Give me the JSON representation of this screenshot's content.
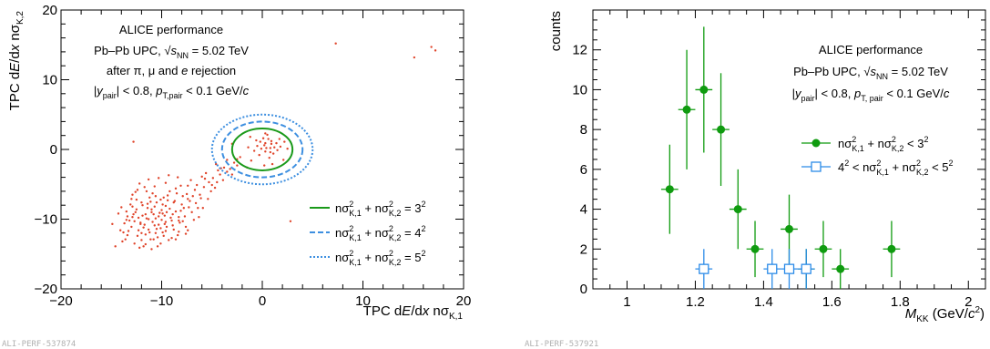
{
  "chart_data": [
    {
      "type": "scatter",
      "xlabel": "TPC dE/dx nσ_K,1",
      "ylabel": "TPC dE/dx nσ_K,2",
      "xlim": [
        -20,
        20
      ],
      "ylim": [
        -20,
        20
      ],
      "xticks": [
        "−20",
        "−10",
        "0",
        "10",
        "20"
      ],
      "yticks": [
        "−20",
        "−10",
        "0",
        "10",
        "20"
      ],
      "annotations": [
        "ALICE performance",
        "Pb–Pb UPC, √sNN = 5.02 TeV",
        "after π, μ and e rejection",
        "|y_pair| < 0.8, p_T,pair < 0.1 GeV/c"
      ],
      "legend": [
        "nσ²K,1 + nσ²K,2 = 3²",
        "nσ²K,1 + nσ²K,2 = 4²",
        "nσ²K,1 + nσ²K,2 = 5²"
      ],
      "legend_position": "bottom-right",
      "circles": [
        {
          "radius": 3,
          "style": "solid",
          "color": "#1a9a1a"
        },
        {
          "radius": 4,
          "style": "dashed",
          "color": "#3d8fe0"
        },
        {
          "radius": 5,
          "style": "dotted",
          "color": "#3d8fe0"
        }
      ],
      "point_color": "#e0442a",
      "points": [
        [
          7.3,
          15.2
        ],
        [
          15.1,
          13.2
        ],
        [
          16.8,
          14.7
        ],
        [
          17.2,
          14.2
        ],
        [
          -12.8,
          1.1
        ],
        [
          2.8,
          -10.3
        ],
        [
          -3.5,
          -1.5
        ],
        [
          -1.2,
          1.8
        ],
        [
          0.3,
          2.3
        ],
        [
          0.9,
          1.2
        ],
        [
          -0.5,
          0.5
        ],
        [
          0.2,
          0.6
        ],
        [
          0.8,
          0.2
        ],
        [
          1.4,
          0.9
        ],
        [
          0.3,
          -0.3
        ],
        [
          -0.2,
          1.1
        ],
        [
          1.1,
          -0.6
        ],
        [
          0.6,
          1.5
        ],
        [
          -0.8,
          -0.2
        ],
        [
          0.4,
          0.2
        ],
        [
          1.8,
          0.4
        ],
        [
          -0.3,
          -0.8
        ],
        [
          2.2,
          1.1
        ],
        [
          0.1,
          1.6
        ],
        [
          0.9,
          0.8
        ],
        [
          -1.4,
          0.3
        ],
        [
          1.5,
          -0.1
        ],
        [
          0.7,
          -1.2
        ],
        [
          -0.6,
          1.3
        ],
        [
          0.3,
          0.9
        ],
        [
          1.2,
          0.3
        ],
        [
          2.5,
          0.1
        ],
        [
          -1.1,
          -1.6
        ],
        [
          0.5,
          2.1
        ],
        [
          1.0,
          -2.1
        ],
        [
          -2.2,
          -1.1
        ],
        [
          1.7,
          1.5
        ],
        [
          -0.1,
          0.1
        ],
        [
          0.8,
          -0.4
        ],
        [
          -2.5,
          -2.3
        ],
        [
          -1.5,
          -2.6
        ],
        [
          0.2,
          -2.3
        ],
        [
          2.1,
          -1.5
        ],
        [
          -3.0,
          0.8
        ],
        [
          -13.5,
          -8.9
        ],
        [
          -12.9,
          -9.7
        ],
        [
          -12.1,
          -10.5
        ],
        [
          -11.4,
          -8.4
        ],
        [
          -11.8,
          -11.2
        ],
        [
          -10.8,
          -9.3
        ],
        [
          -10.3,
          -10.8
        ],
        [
          -9.6,
          -8.1
        ],
        [
          -9.9,
          -11.9
        ],
        [
          -13.0,
          -11.1
        ],
        [
          -12.4,
          -12.4
        ],
        [
          -11.1,
          -12.9
        ],
        [
          -10.6,
          -9.9
        ],
        [
          -9.1,
          -9.8
        ],
        [
          -8.6,
          -8.9
        ],
        [
          -8.2,
          -10.5
        ],
        [
          -8.8,
          -7.6
        ],
        [
          -9.4,
          -6.6
        ],
        [
          -10.1,
          -7.2
        ],
        [
          -11.2,
          -6.9
        ],
        [
          -12.0,
          -7.6
        ],
        [
          -13.2,
          -10.2
        ],
        [
          -14.1,
          -11.6
        ],
        [
          -13.6,
          -12.9
        ],
        [
          -12.7,
          -13.5
        ],
        [
          -11.6,
          -13.6
        ],
        [
          -10.4,
          -12.6
        ],
        [
          -9.5,
          -11.1
        ],
        [
          -8.3,
          -11.8
        ],
        [
          -7.7,
          -9.6
        ],
        [
          -7.3,
          -8.3
        ],
        [
          -7.9,
          -6.7
        ],
        [
          -8.6,
          -5.6
        ],
        [
          -9.6,
          -4.8
        ],
        [
          -10.7,
          -5.3
        ],
        [
          -11.7,
          -5.4
        ],
        [
          -12.6,
          -6.1
        ],
        [
          -13.1,
          -7.9
        ],
        [
          -14.3,
          -9.2
        ],
        [
          -14.6,
          -13.9
        ],
        [
          -13.9,
          -13.2
        ],
        [
          -12.2,
          -14.1
        ],
        [
          -11.0,
          -14.3
        ],
        [
          -10.1,
          -13.5
        ],
        [
          -9.0,
          -12.7
        ],
        [
          -7.6,
          -11.1
        ],
        [
          -6.8,
          -10.1
        ],
        [
          -6.4,
          -8.4
        ],
        [
          -6.9,
          -6.7
        ],
        [
          -7.4,
          -5.2
        ],
        [
          -8.4,
          -4.0
        ],
        [
          -9.3,
          -3.7
        ],
        [
          -10.3,
          -4.1
        ],
        [
          -11.3,
          -4.3
        ],
        [
          -12.2,
          -4.9
        ],
        [
          -12.9,
          -6.5
        ],
        [
          -11.5,
          -9.9
        ],
        [
          -10.9,
          -10.4
        ],
        [
          -10.2,
          -9.1
        ],
        [
          -9.7,
          -9.5
        ],
        [
          -11.9,
          -9.5
        ],
        [
          -12.5,
          -8.6
        ],
        [
          -10.7,
          -8.2
        ],
        [
          -9.2,
          -8.5
        ],
        [
          -8.7,
          -7.4
        ],
        [
          -11.4,
          -7.8
        ],
        [
          -12.3,
          -11.6
        ],
        [
          -10.5,
          -11.4
        ],
        [
          -9.6,
          -10.4
        ],
        [
          -8.9,
          -10.9
        ],
        [
          -13.3,
          -11.7
        ],
        [
          -11.7,
          -10.8
        ],
        [
          -10.0,
          -10.1
        ],
        [
          -8.1,
          -8.8
        ],
        [
          -7.2,
          -7.4
        ],
        [
          -6.2,
          -6.5
        ],
        [
          -5.8,
          -5.4
        ],
        [
          -5.3,
          -4.7
        ],
        [
          -4.9,
          -4.1
        ],
        [
          -6.5,
          -5.1
        ],
        [
          -7.1,
          -4.4
        ],
        [
          -5.6,
          -3.4
        ],
        [
          -4.4,
          -3.0
        ],
        [
          -3.8,
          -2.6
        ],
        [
          -4.6,
          -2.1
        ],
        [
          -6.0,
          -3.9
        ],
        [
          -12.8,
          -9.3
        ],
        [
          -11.3,
          -11.5
        ],
        [
          -10.6,
          -12.0
        ],
        [
          -9.9,
          -7.9
        ],
        [
          -13.7,
          -10.6
        ],
        [
          -12.0,
          -13.0
        ],
        [
          -8.4,
          -12.3
        ],
        [
          -7.9,
          -10.3
        ],
        [
          -10.9,
          -6.3
        ],
        [
          -11.9,
          -8.0
        ],
        [
          -13.4,
          -9.6
        ],
        [
          -9.3,
          -13.0
        ],
        [
          -10.4,
          -13.9
        ],
        [
          -11.6,
          -12.2
        ],
        [
          -12.7,
          -10.3
        ],
        [
          -8.9,
          -9.3
        ],
        [
          -9.8,
          -6.9
        ],
        [
          -7.0,
          -9.0
        ],
        [
          -6.6,
          -7.7
        ],
        [
          -5.9,
          -8.4
        ],
        [
          -5.1,
          -6.0
        ],
        [
          -4.7,
          -5.5
        ],
        [
          -3.9,
          -4.4
        ],
        [
          -4.2,
          -3.6
        ],
        [
          -3.2,
          -2.8
        ],
        [
          -2.8,
          -1.9
        ],
        [
          -5.4,
          -7.1
        ],
        [
          -6.3,
          -9.7
        ],
        [
          -7.6,
          -12.1
        ],
        [
          -11.0,
          -9.0
        ],
        [
          -10.3,
          -9.6
        ],
        [
          -9.6,
          -11.7
        ],
        [
          -12.3,
          -9.8
        ],
        [
          -13.8,
          -11.9
        ],
        [
          -14.9,
          -10.7
        ],
        [
          -12.5,
          -7.2
        ],
        [
          -11.1,
          -7.5
        ],
        [
          -9.4,
          -7.3
        ],
        [
          -8.0,
          -7.9
        ],
        [
          -7.4,
          -11.6
        ],
        [
          -8.6,
          -12.9
        ],
        [
          -10.8,
          -12.9
        ],
        [
          -12.0,
          -12.0
        ],
        [
          -9.0,
          -10.2
        ],
        [
          -8.3,
          -9.7
        ],
        [
          -10.0,
          -8.7
        ],
        [
          -11.3,
          -10.0
        ],
        [
          -12.9,
          -8.2
        ],
        [
          -13.4,
          -12.3
        ],
        [
          -11.8,
          -13.9
        ],
        [
          -9.8,
          -12.4
        ],
        [
          -8.8,
          -11.5
        ],
        [
          -7.8,
          -8.4
        ],
        [
          -6.7,
          -5.8
        ],
        [
          -5.7,
          -4.2
        ],
        [
          -4.1,
          -2.7
        ],
        [
          -3.0,
          -3.6
        ],
        [
          -2.5,
          -1.4
        ],
        [
          -10.5,
          -7.6
        ],
        [
          -9.2,
          -6.0
        ],
        [
          -8.1,
          -5.2
        ],
        [
          -7.5,
          -6.4
        ],
        [
          -11.5,
          -6.0
        ],
        [
          -12.4,
          -5.8
        ],
        [
          -13.0,
          -7.1
        ],
        [
          -14.0,
          -8.3
        ],
        [
          -11.2,
          -11.9
        ],
        [
          -12.1,
          -10.7
        ],
        [
          -10.7,
          -10.9
        ],
        [
          -9.5,
          -9.0
        ],
        [
          -10.1,
          -11.3
        ],
        [
          -11.6,
          -9.3
        ],
        [
          -9.9,
          -9.2
        ],
        [
          -10.6,
          -6.7
        ],
        [
          -8.5,
          -6.3
        ],
        [
          -12.6,
          -9.0
        ],
        [
          -13.5,
          -10.1
        ],
        [
          -11.0,
          -8.6
        ],
        [
          -9.7,
          -10.7
        ],
        [
          -8.3,
          -10.2
        ],
        [
          -7.4,
          -7.1
        ],
        [
          -6.1,
          -7.0
        ],
        [
          -5.0,
          -5.1
        ],
        [
          -4.5,
          -4.7
        ],
        [
          -3.5,
          -3.2
        ]
      ]
    },
    {
      "type": "scatter",
      "xlabel": "M_KK (GeV/c²)",
      "ylabel": "counts",
      "xlim": [
        0.9,
        2.05
      ],
      "ylim": [
        0,
        14
      ],
      "xticks": [
        "1",
        "1.2",
        "1.4",
        "1.6",
        "1.8",
        "2"
      ],
      "yticks": [
        "0",
        "2",
        "4",
        "6",
        "8",
        "10",
        "12"
      ],
      "annotations": [
        "ALICE performance",
        "Pb–Pb UPC, √sNN = 5.02 TeV",
        "|y_pair| < 0.8, p_T, pair < 0.1 GeV/c"
      ],
      "legend_position": "top-right",
      "series": [
        {
          "name": "nσ²K,1 + nσ²K,2 < 3²",
          "color": "#0f9b0f",
          "marker": "filled-circle",
          "x": [
            1.125,
            1.175,
            1.225,
            1.275,
            1.325,
            1.375,
            1.475,
            1.525,
            1.575,
            1.625,
            1.775
          ],
          "y": [
            5,
            9,
            10,
            8,
            4,
            2,
            3,
            1,
            2,
            1,
            2
          ],
          "err": [
            2.24,
            3.0,
            3.16,
            2.83,
            2.0,
            1.41,
            1.73,
            1.0,
            1.41,
            1.0,
            1.41
          ],
          "xerr": 0.025
        },
        {
          "name": "4² < nσ²K,1 + nσ²K,2 < 5²",
          "color": "#2b8be8",
          "marker": "open-square",
          "x": [
            1.225,
            1.425,
            1.475,
            1.525
          ],
          "y": [
            1,
            1,
            1,
            1
          ],
          "err": [
            1.0,
            1.0,
            1.0,
            1.0
          ],
          "xerr": 0.025
        }
      ]
    }
  ],
  "footer": {
    "left_id": "ALI-PERF-537874",
    "right_id": "ALI-PERF-537921"
  }
}
